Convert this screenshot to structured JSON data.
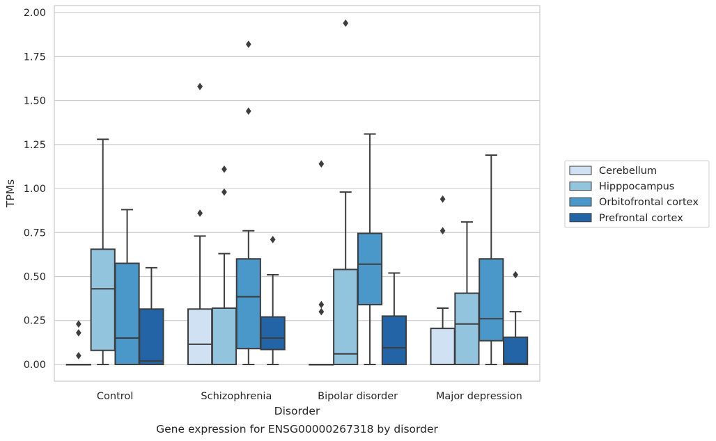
{
  "chart_data": {
    "type": "boxplot",
    "title": "Gene expression for ENSG00000267318 by disorder",
    "xlabel": "Disorder",
    "ylabel": "TPMs",
    "ylim": [
      -0.095,
      2.04
    ],
    "yticks": [
      0.0,
      0.25,
      0.5,
      0.75,
      1.0,
      1.25,
      1.5,
      1.75,
      2.0
    ],
    "ytick_labels": [
      "0.00",
      "0.25",
      "0.50",
      "0.75",
      "1.00",
      "1.25",
      "1.50",
      "1.75",
      "2.00"
    ],
    "grid": "horizontal",
    "legend_position": "right",
    "categories": [
      "Control",
      "Schizophrenia",
      "Bipolar disorder",
      "Major depression"
    ],
    "series": [
      {
        "name": "Cerebellum",
        "color": "#cfe1f2",
        "boxes": [
          {
            "whislo": 0.0,
            "q1": 0.0,
            "med": 0.0,
            "q3": 0.0,
            "whishi": 0.0,
            "fliers": [
              0.05,
              0.18,
              0.23
            ]
          },
          {
            "whislo": 0.0,
            "q1": 0.0,
            "med": 0.115,
            "q3": 0.315,
            "whishi": 0.73,
            "fliers": [
              0.86,
              1.58
            ]
          },
          {
            "whislo": 0.0,
            "q1": 0.0,
            "med": 0.0,
            "q3": 0.0,
            "whishi": 0.0,
            "fliers": [
              0.3,
              0.34,
              1.14
            ]
          },
          {
            "whislo": 0.0,
            "q1": 0.0,
            "med": 0.0,
            "q3": 0.205,
            "whishi": 0.32,
            "fliers": [
              0.76,
              0.94
            ]
          }
        ]
      },
      {
        "name": "Hipppocampus",
        "color": "#93c4de",
        "boxes": [
          {
            "whislo": 0.0,
            "q1": 0.08,
            "med": 0.43,
            "q3": 0.655,
            "whishi": 1.28,
            "fliers": []
          },
          {
            "whislo": 0.0,
            "q1": 0.0,
            "med": 0.0,
            "q3": 0.32,
            "whishi": 0.63,
            "fliers": [
              0.98,
              1.11
            ]
          },
          {
            "whislo": 0.0,
            "q1": 0.0,
            "med": 0.06,
            "q3": 0.54,
            "whishi": 0.98,
            "fliers": [
              1.94
            ]
          },
          {
            "whislo": 0.0,
            "q1": 0.0,
            "med": 0.23,
            "q3": 0.405,
            "whishi": 0.81,
            "fliers": []
          }
        ]
      },
      {
        "name": "Orbitofrontal cortex",
        "color": "#4a98c9",
        "boxes": [
          {
            "whislo": 0.0,
            "q1": 0.0,
            "med": 0.15,
            "q3": 0.575,
            "whishi": 0.88,
            "fliers": []
          },
          {
            "whislo": 0.0,
            "q1": 0.09,
            "med": 0.385,
            "q3": 0.6,
            "whishi": 0.76,
            "fliers": [
              1.44,
              1.82
            ]
          },
          {
            "whislo": 0.0,
            "q1": 0.34,
            "med": 0.57,
            "q3": 0.745,
            "whishi": 1.31,
            "fliers": []
          },
          {
            "whislo": 0.0,
            "q1": 0.135,
            "med": 0.26,
            "q3": 0.6,
            "whishi": 1.19,
            "fliers": []
          }
        ]
      },
      {
        "name": "Prefrontal cortex",
        "color": "#2264a6",
        "boxes": [
          {
            "whislo": 0.0,
            "q1": 0.0,
            "med": 0.02,
            "q3": 0.315,
            "whishi": 0.55,
            "fliers": []
          },
          {
            "whislo": 0.0,
            "q1": 0.085,
            "med": 0.15,
            "q3": 0.27,
            "whishi": 0.51,
            "fliers": [
              0.71
            ]
          },
          {
            "whislo": 0.0,
            "q1": 0.0,
            "med": 0.095,
            "q3": 0.275,
            "whishi": 0.52,
            "fliers": []
          },
          {
            "whislo": 0.0,
            "q1": 0.0,
            "med": 0.005,
            "q3": 0.155,
            "whishi": 0.3,
            "fliers": [
              0.51
            ]
          }
        ]
      }
    ]
  }
}
